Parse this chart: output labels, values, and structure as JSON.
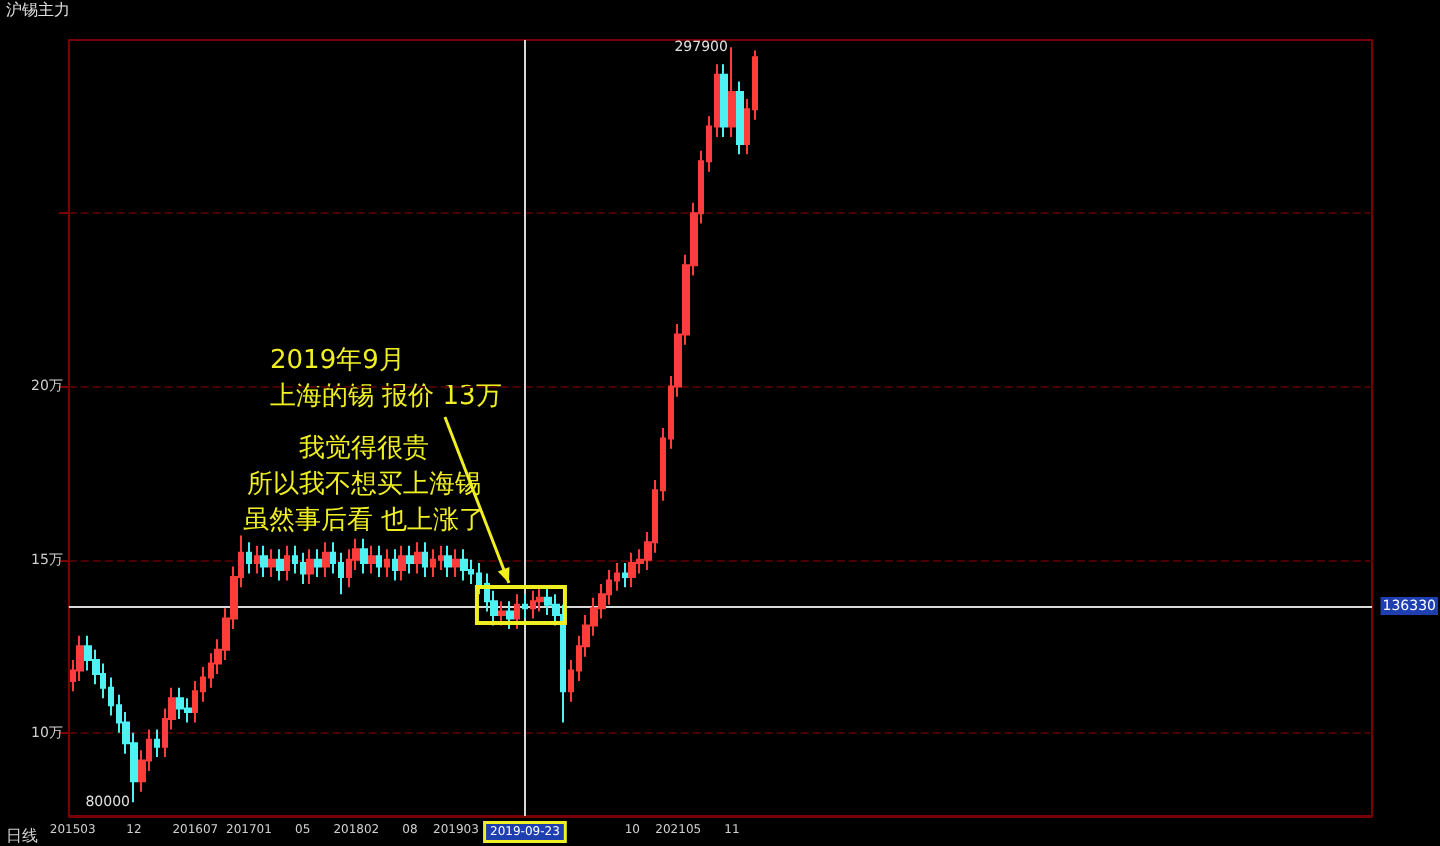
{
  "chart_data": {
    "type": "candlestick",
    "title": "沪锡主力",
    "xlabel": "日线",
    "categories": [
      "201503",
      null,
      null,
      null,
      null,
      null,
      null,
      null,
      "12",
      null,
      null,
      null,
      null,
      null,
      null,
      null,
      "201607",
      null,
      null,
      null,
      null,
      null,
      null,
      "201701",
      null,
      null,
      null,
      null,
      null,
      null,
      "05",
      null,
      null,
      null,
      null,
      null,
      null,
      "201802",
      null,
      null,
      null,
      null,
      null,
      null,
      "08",
      null,
      null,
      null,
      null,
      null,
      "201903",
      null,
      null,
      null,
      null,
      null,
      null,
      null,
      null,
      "2019-09-23",
      null,
      null,
      null,
      null,
      null,
      null,
      null,
      null,
      null,
      null,
      null,
      null,
      null,
      "10",
      null,
      null,
      null,
      null,
      null,
      "202105",
      null,
      null,
      null,
      null,
      null,
      null,
      "11",
      null,
      null,
      null
    ],
    "ohlc": [
      [
        11.5,
        12.1,
        11.2,
        11.8
      ],
      [
        11.8,
        12.8,
        11.5,
        12.5
      ],
      [
        12.5,
        12.8,
        11.8,
        12.1
      ],
      [
        12.1,
        12.4,
        11.4,
        11.7
      ],
      [
        11.7,
        12.0,
        11.0,
        11.3
      ],
      [
        11.3,
        11.6,
        10.5,
        10.8
      ],
      [
        10.8,
        11.1,
        10.0,
        10.3
      ],
      [
        10.3,
        10.6,
        9.4,
        9.7
      ],
      [
        9.7,
        10.0,
        8.0,
        8.6
      ],
      [
        8.6,
        9.5,
        8.3,
        9.2
      ],
      [
        9.2,
        10.1,
        8.9,
        9.8
      ],
      [
        9.8,
        10.1,
        9.3,
        9.6
      ],
      [
        9.6,
        10.7,
        9.3,
        10.4
      ],
      [
        10.4,
        11.3,
        10.1,
        11.0
      ],
      [
        11.0,
        11.3,
        10.4,
        10.7
      ],
      [
        10.7,
        11.0,
        10.3,
        10.6
      ],
      [
        10.6,
        11.5,
        10.3,
        11.2
      ],
      [
        11.2,
        11.9,
        10.9,
        11.6
      ],
      [
        11.6,
        12.3,
        11.3,
        12.0
      ],
      [
        12.0,
        12.7,
        11.7,
        12.4
      ],
      [
        12.4,
        13.6,
        12.1,
        13.3
      ],
      [
        13.3,
        14.8,
        13.0,
        14.5
      ],
      [
        14.5,
        15.7,
        14.2,
        15.2
      ],
      [
        15.2,
        15.5,
        14.6,
        14.9
      ],
      [
        14.9,
        15.4,
        14.6,
        15.1
      ],
      [
        15.1,
        15.4,
        14.5,
        14.8
      ],
      [
        14.8,
        15.3,
        14.5,
        15.0
      ],
      [
        15.0,
        15.3,
        14.4,
        14.7
      ],
      [
        14.7,
        15.4,
        14.4,
        15.1
      ],
      [
        15.1,
        15.4,
        14.6,
        14.9
      ],
      [
        14.9,
        15.2,
        14.3,
        14.6
      ],
      [
        14.6,
        15.3,
        14.3,
        15.0
      ],
      [
        15.0,
        15.3,
        14.5,
        14.8
      ],
      [
        14.8,
        15.5,
        14.5,
        15.2
      ],
      [
        15.2,
        15.5,
        14.6,
        14.9
      ],
      [
        14.9,
        15.2,
        14.0,
        14.5
      ],
      [
        14.5,
        15.3,
        14.2,
        15.0
      ],
      [
        15.0,
        15.6,
        14.7,
        15.3
      ],
      [
        15.3,
        15.6,
        14.6,
        14.9
      ],
      [
        14.9,
        15.4,
        14.6,
        15.1
      ],
      [
        15.1,
        15.4,
        14.5,
        14.8
      ],
      [
        14.8,
        15.3,
        14.5,
        15.0
      ],
      [
        15.0,
        15.3,
        14.4,
        14.7
      ],
      [
        14.7,
        15.4,
        14.4,
        15.1
      ],
      [
        15.1,
        15.4,
        14.6,
        14.9
      ],
      [
        14.9,
        15.5,
        14.6,
        15.2
      ],
      [
        15.2,
        15.5,
        14.5,
        14.8
      ],
      [
        14.8,
        15.3,
        14.5,
        15.0
      ],
      [
        15.0,
        15.4,
        14.7,
        15.1
      ],
      [
        15.1,
        15.4,
        14.5,
        14.8
      ],
      [
        14.8,
        15.3,
        14.5,
        15.0
      ],
      [
        15.0,
        15.3,
        14.4,
        14.7
      ],
      [
        14.7,
        15.0,
        14.3,
        14.6
      ],
      [
        14.6,
        14.9,
        14.0,
        14.3
      ],
      [
        14.3,
        14.6,
        13.5,
        13.8
      ],
      [
        13.8,
        14.1,
        13.1,
        13.4
      ],
      [
        13.4,
        13.8,
        13.1,
        13.5
      ],
      [
        13.5,
        13.8,
        13.0,
        13.3
      ],
      [
        13.3,
        14.0,
        13.0,
        13.7
      ],
      [
        13.7,
        14.0,
        13.3,
        13.6
      ],
      [
        13.6,
        14.1,
        13.3,
        13.8
      ],
      [
        13.8,
        14.2,
        13.5,
        13.9
      ],
      [
        13.9,
        14.2,
        13.4,
        13.7
      ],
      [
        13.7,
        14.0,
        13.1,
        13.4
      ],
      [
        13.4,
        13.7,
        10.3,
        11.2
      ],
      [
        11.2,
        12.1,
        10.9,
        11.8
      ],
      [
        11.8,
        12.8,
        11.5,
        12.5
      ],
      [
        12.5,
        13.4,
        12.2,
        13.1
      ],
      [
        13.1,
        13.9,
        12.8,
        13.6
      ],
      [
        13.6,
        14.3,
        13.3,
        14.0
      ],
      [
        14.0,
        14.7,
        13.7,
        14.4
      ],
      [
        14.4,
        14.9,
        14.1,
        14.6
      ],
      [
        14.6,
        14.9,
        14.2,
        14.5
      ],
      [
        14.5,
        15.2,
        14.2,
        14.9
      ],
      [
        14.9,
        15.3,
        14.6,
        15.0
      ],
      [
        15.0,
        15.8,
        14.7,
        15.5
      ],
      [
        15.5,
        17.3,
        15.2,
        17.0
      ],
      [
        17.0,
        18.8,
        16.7,
        18.5
      ],
      [
        18.5,
        20.3,
        18.2,
        20.0
      ],
      [
        20.0,
        21.8,
        19.7,
        21.5
      ],
      [
        21.5,
        23.8,
        21.2,
        23.5
      ],
      [
        23.5,
        25.3,
        23.2,
        25.0
      ],
      [
        25.0,
        26.8,
        24.7,
        26.5
      ],
      [
        26.5,
        27.8,
        26.2,
        27.5
      ],
      [
        27.5,
        29.3,
        27.2,
        29.0
      ],
      [
        29.0,
        29.3,
        27.2,
        27.5
      ],
      [
        27.5,
        29.79,
        27.2,
        28.5
      ],
      [
        28.5,
        28.8,
        26.7,
        27.0
      ],
      [
        27.0,
        28.3,
        26.7,
        28.0
      ],
      [
        28.0,
        29.7,
        27.7,
        29.5
      ]
    ],
    "colors": [
      "#ff3c3c",
      "#ff3c3c",
      "#4ef2f2",
      "#4ef2f2",
      "#4ef2f2",
      "#4ef2f2",
      "#4ef2f2",
      "#4ef2f2",
      "#4ef2f2",
      "#ff3c3c",
      "#ff3c3c",
      "#4ef2f2",
      "#ff3c3c",
      "#ff3c3c",
      "#4ef2f2",
      "#4ef2f2",
      "#ff3c3c",
      "#ff3c3c",
      "#ff3c3c",
      "#ff3c3c",
      "#ff3c3c",
      "#ff3c3c",
      "#ff3c3c",
      "#4ef2f2",
      "#ff3c3c",
      "#4ef2f2",
      "#ff3c3c",
      "#4ef2f2",
      "#ff3c3c",
      "#4ef2f2",
      "#4ef2f2",
      "#ff3c3c",
      "#4ef2f2",
      "#ff3c3c",
      "#4ef2f2",
      "#4ef2f2",
      "#ff3c3c",
      "#ff3c3c",
      "#4ef2f2",
      "#ff3c3c",
      "#4ef2f2",
      "#ff3c3c",
      "#4ef2f2",
      "#ff3c3c",
      "#4ef2f2",
      "#ff3c3c",
      "#4ef2f2",
      "#ff3c3c",
      "#ff3c3c",
      "#4ef2f2",
      "#ff3c3c",
      "#4ef2f2",
      "#4ef2f2",
      "#4ef2f2",
      "#4ef2f2",
      "#4ef2f2",
      "#ff3c3c",
      "#4ef2f2",
      "#ff3c3c",
      "#4ef2f2",
      "#ff3c3c",
      "#ff3c3c",
      "#4ef2f2",
      "#4ef2f2",
      "#4ef2f2",
      "#ff3c3c",
      "#ff3c3c",
      "#ff3c3c",
      "#ff3c3c",
      "#ff3c3c",
      "#ff3c3c",
      "#ff3c3c",
      "#4ef2f2",
      "#ff3c3c",
      "#ff3c3c",
      "#ff3c3c",
      "#ff3c3c",
      "#ff3c3c",
      "#ff3c3c",
      "#ff3c3c",
      "#ff3c3c",
      "#ff3c3c",
      "#ff3c3c",
      "#ff3c3c",
      "#ff3c3c",
      "#4ef2f2",
      "#ff3c3c",
      "#4ef2f2",
      "#ff3c3c",
      "#ff3c3c"
    ],
    "ylim": [
      7.6,
      30
    ],
    "yticks": [
      {
        "value": 10,
        "label": "10万"
      },
      {
        "value": 15,
        "label": "15万"
      },
      {
        "value": 20,
        "label": "20万"
      },
      {
        "value": 25,
        "label": null
      }
    ],
    "grid": "y",
    "ref_lines": [
      {
        "axis": "y",
        "value": 13.633
      },
      {
        "axis": "x",
        "value": "2019-09-23"
      }
    ],
    "annotations": [
      "2019年9月",
      "上海的锡 报价 13万",
      "我觉得很贵",
      "所以我不想买上海锡",
      "虽然事后看 也上涨了",
      "80000",
      "297900",
      "136330"
    ]
  }
}
